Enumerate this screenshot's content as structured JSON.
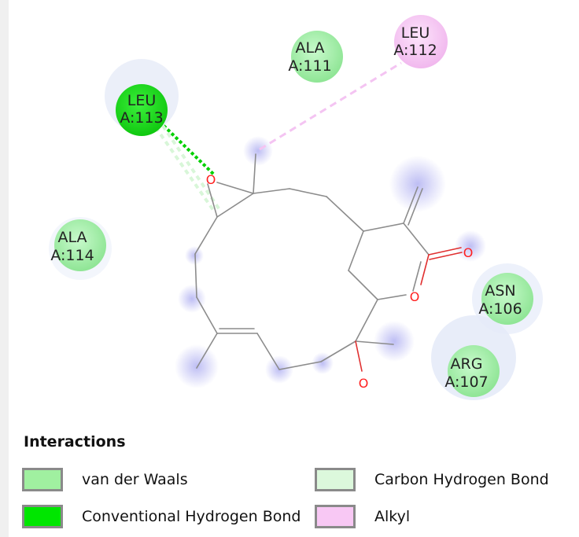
{
  "residues": [
    {
      "id": "leu113",
      "name": "LEU",
      "chain": "A:113",
      "type": "conventional-hbond"
    },
    {
      "id": "ala111",
      "name": "ALA",
      "chain": "A:111",
      "type": "van-der-waals"
    },
    {
      "id": "leu112",
      "name": "LEU",
      "chain": "A:112",
      "type": "alkyl"
    },
    {
      "id": "ala114",
      "name": "ALA",
      "chain": "A:114",
      "type": "van-der-waals"
    },
    {
      "id": "asn106",
      "name": "ASN",
      "chain": "A:106",
      "type": "van-der-waals"
    },
    {
      "id": "arg107",
      "name": "ARG",
      "chain": "A:107",
      "type": "van-der-waals"
    }
  ],
  "atoms": {
    "epoxide_o": "O",
    "lactone_o_ring": "O",
    "lactone_o_carbonyl": "O",
    "hydroxyl_o": "O"
  },
  "legend": {
    "title": "Interactions",
    "items": [
      {
        "label": "van der Waals",
        "color": "#a0f0a0"
      },
      {
        "label": "Carbon Hydrogen Bond",
        "color": "#dcf8dc"
      },
      {
        "label": "Conventional Hydrogen Bond",
        "color": "#00e600"
      },
      {
        "label": "Alkyl",
        "color": "#f8c8f4"
      }
    ]
  },
  "colors": {
    "van_der_waals": "#a0f0a0",
    "conventional_hbond": "#00d000",
    "carbon_hbond": "#dcf8dc",
    "alkyl": "#f8c8f4",
    "bond": "#8c8c8c",
    "oxygen": "#ff2020",
    "halo": "#d8dcf4"
  }
}
